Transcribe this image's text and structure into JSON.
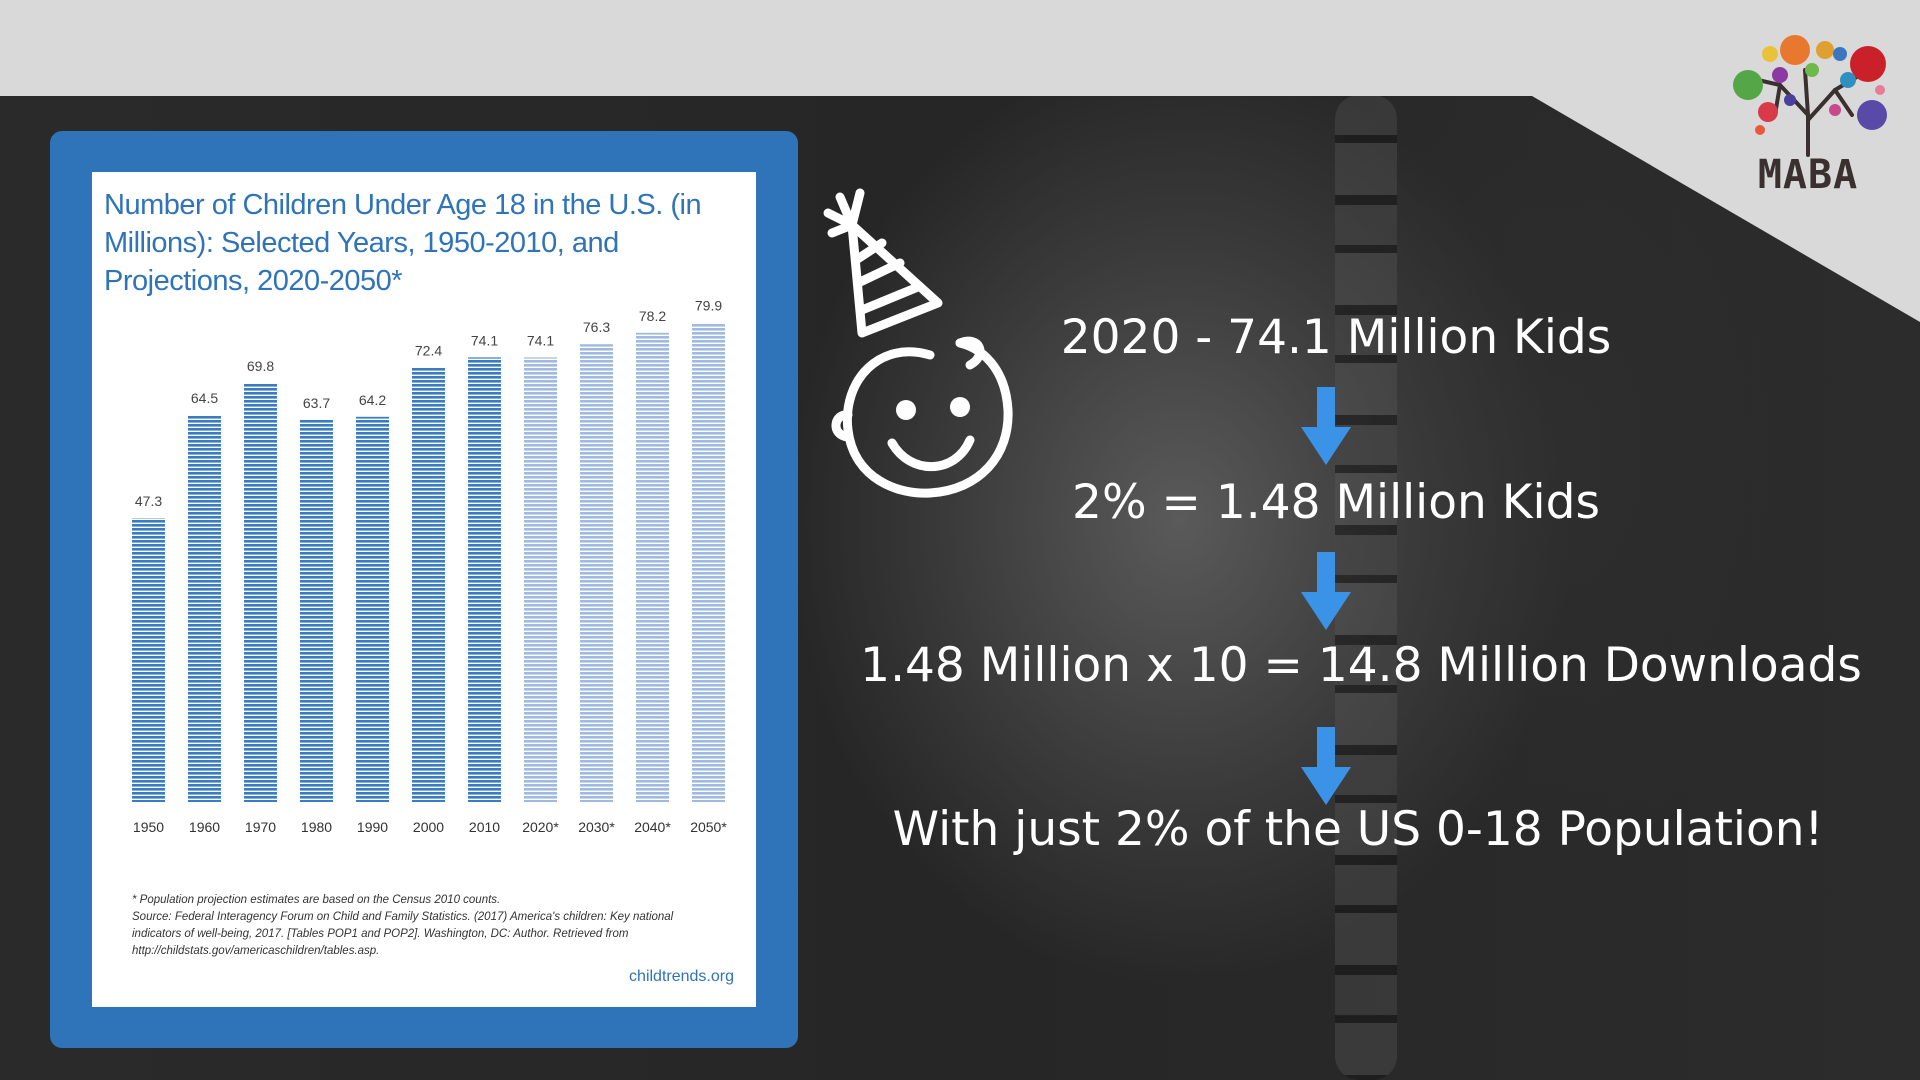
{
  "colors": {
    "card_blue": "#2f73b8",
    "bar_actual": "#3a7cc4",
    "bar_projected": "#a9c1e4",
    "arrow_blue": "#3b93e8",
    "text_white": "#ffffff"
  },
  "logo": {
    "text": "MABA"
  },
  "chart_data": {
    "type": "bar",
    "title": "Number of Children Under Age 18 in the U.S. (in Millions): Selected Years, 1950-2010, and Projections, 2020-2050*",
    "categories": [
      "1950",
      "1960",
      "1970",
      "1980",
      "1990",
      "2000",
      "2010",
      "2020*",
      "2030*",
      "2040*",
      "2050*"
    ],
    "values": [
      47.3,
      64.5,
      69.8,
      63.7,
      64.2,
      72.4,
      74.1,
      74.1,
      76.3,
      78.2,
      79.9
    ],
    "value_labels": [
      "47.3",
      "64.5",
      "69.8",
      "63.7",
      "64.2",
      "72.4",
      "74.1",
      "74.1",
      "76.3",
      "78.2",
      "79.9"
    ],
    "projected": [
      false,
      false,
      false,
      false,
      false,
      false,
      false,
      true,
      true,
      true,
      true
    ],
    "ylim": [
      0,
      80
    ],
    "xlabel": "",
    "ylabel": "",
    "grid": false,
    "footnote": [
      "* Population projection estimates are based on the Census 2010 counts.",
      "Source: Federal Interagency Forum on Child and Family Statistics. (2017) America's children: Key national",
      "indicators of well-being, 2017. [Tables POP1 and POP2]. Washington, DC: Author. Retrieved from",
      "http://childstats.gov/americaschildren/tables.asp."
    ],
    "brand": "childtrends.org"
  },
  "statements": [
    "2020 - 74.1 Million Kids",
    "2%  = 1.48 Million Kids",
    "1.48 Million x 10 = 14.8 Million Downloads",
    "With just 2% of the US 0-18 Population!"
  ],
  "icons": {
    "baby": "baby-face-party-hat-icon",
    "arrow": "arrow-down-icon"
  }
}
